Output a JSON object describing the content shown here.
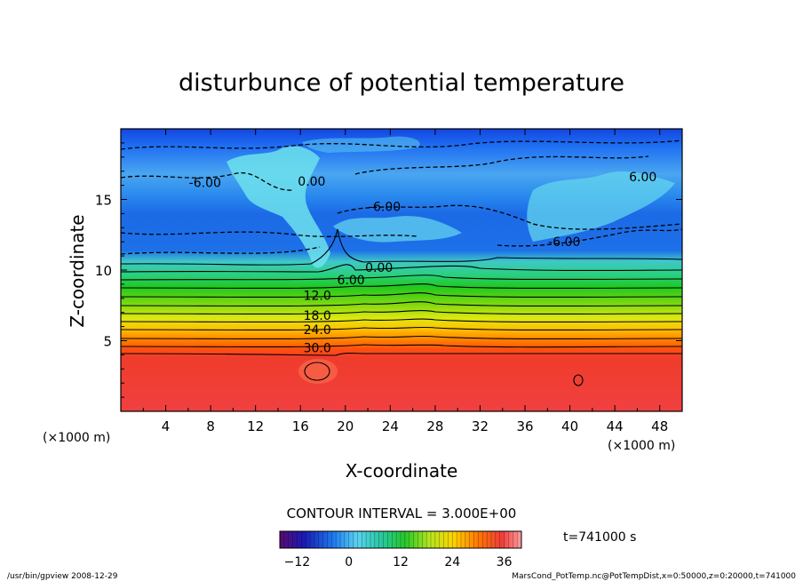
{
  "chart_data": {
    "type": "heatmap",
    "title": "disturbunce of potential temperature",
    "xlabel": "X-coordinate",
    "ylabel": "Z-coordinate",
    "x_unit": "(×1000 m)",
    "z_unit": "(×1000 m)",
    "xlim": [
      0,
      50
    ],
    "ylim": [
      0,
      20
    ],
    "x_ticks": [
      4,
      8,
      12,
      16,
      20,
      24,
      28,
      32,
      36,
      40,
      44,
      48
    ],
    "y_ticks": [
      5,
      10,
      15
    ],
    "contour_interval_text": "CONTOUR INTERVAL = 3.000E+00",
    "time_text": "t=741000 s",
    "contour_labels": [
      {
        "text": "-6.00",
        "x": 7.5,
        "z": 16.2
      },
      {
        "text": "0.00",
        "x": 17.0,
        "z": 16.3
      },
      {
        "text": "-6.00",
        "x": 23.5,
        "z": 14.5
      },
      {
        "text": "6.00",
        "x": 46.5,
        "z": 16.6
      },
      {
        "text": "-6.00",
        "x": 39.5,
        "z": 12.0
      },
      {
        "text": "0.00",
        "x": 23.0,
        "z": 10.2
      },
      {
        "text": "6.00",
        "x": 20.5,
        "z": 9.3
      },
      {
        "text": "12.0",
        "x": 17.5,
        "z": 8.2
      },
      {
        "text": "18.0",
        "x": 17.5,
        "z": 6.8
      },
      {
        "text": "24.0",
        "x": 17.5,
        "z": 5.8
      },
      {
        "text": "30.0",
        "x": 17.5,
        "z": 4.5
      }
    ],
    "colorbar": {
      "min": -16,
      "max": 40,
      "ticks": [
        -12,
        0,
        12,
        24,
        36
      ]
    },
    "notes": "Blue-to-red shaded field: negative values (~-6 to -12) above z≈10 km, increasing through green/yellow/orange bands to ~36 below z≈4 km."
  },
  "footer": {
    "left": "/usr/bin/gpview   2008-12-29",
    "right": "MarsCond_PotTemp.nc@PotTempDist,x=0:50000,z=0:20000,t=741000"
  }
}
